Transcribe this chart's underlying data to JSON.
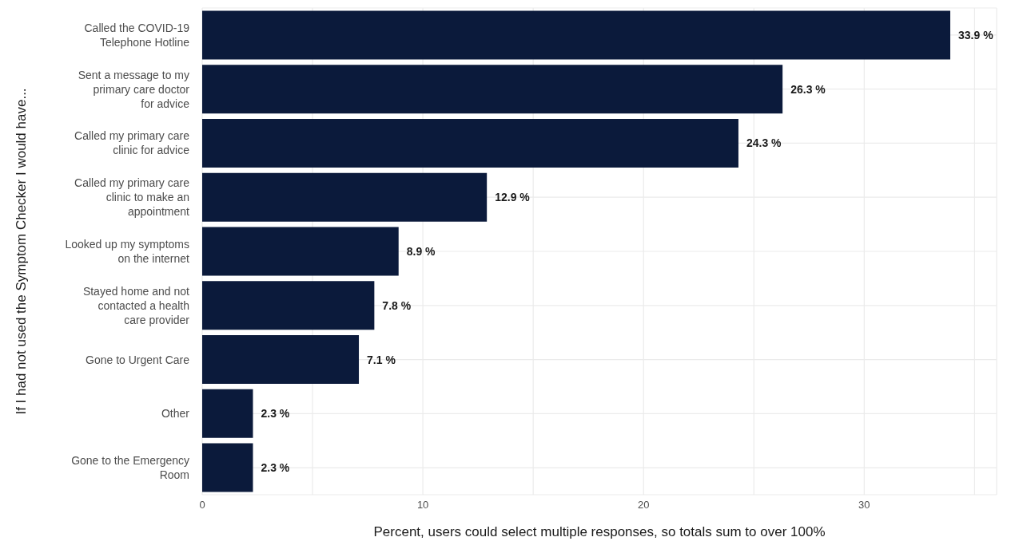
{
  "chart_data": {
    "type": "bar",
    "orientation": "horizontal",
    "xlabel": "Percent, users could select multiple responses, so totals sum to over 100%",
    "ylabel": "If I had not used the Symptom Checker I would have...",
    "categories": [
      "Called the COVID-19 Telephone Hotline",
      "Sent a message to my primary care doctor for advice",
      "Called my primary care clinic for advice",
      "Called my primary care clinic to make an appointment",
      "Looked up my symptoms on the internet",
      "Stayed home and not contacted a health care provider",
      "Gone to Urgent Care",
      "Other",
      "Gone to the Emergency Room"
    ],
    "values": [
      33.9,
      26.3,
      24.3,
      12.9,
      8.9,
      7.8,
      7.1,
      2.3,
      2.3
    ],
    "value_labels": [
      "33.9 %",
      "26.3 %",
      "24.3 %",
      "12.9 %",
      "8.9 %",
      "7.8 %",
      "7.1 %",
      "2.3 %",
      "2.3 %"
    ],
    "color": "#0b1a3b",
    "xlim": [
      0,
      36
    ],
    "xticks": [
      0,
      {
        "value": 5,
        "label": null
      },
      10,
      {
        "value": 15,
        "label": null
      },
      20,
      {
        "value": 25,
        "label": null
      },
      30,
      {
        "value": 35,
        "label": null
      }
    ],
    "grid": true,
    "legend": false
  }
}
